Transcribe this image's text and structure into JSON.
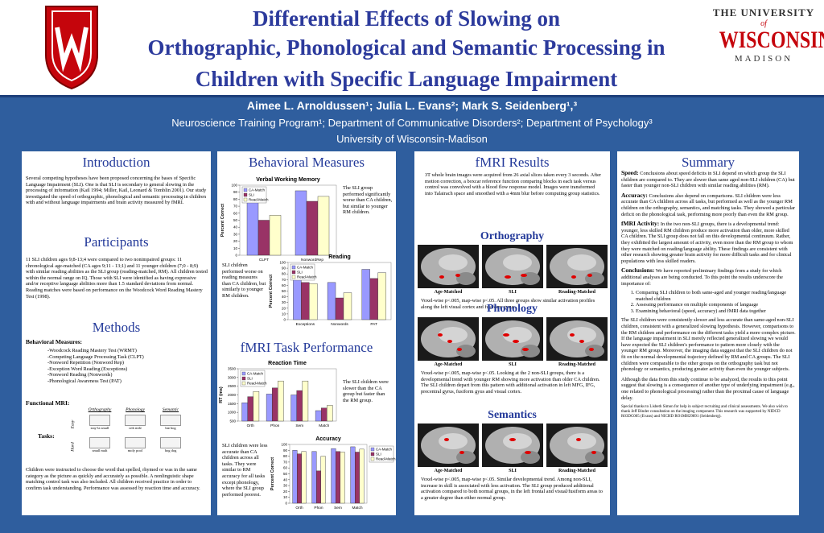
{
  "header": {
    "title_lines": [
      "Differential Effects of Slowing on",
      "Orthographic, Phonological and Semantic Processing in",
      "Children with Specific Language Impairment"
    ],
    "logo": {
      "line1": "THE UNIVERSITY",
      "line2": "of",
      "line3": "WISCONSIN",
      "line4": "MADISON"
    }
  },
  "authors": {
    "names": "Aimee L. Arnoldussen¹; Julia L. Evans²; Mark S. Seidenberg¹,³",
    "affiliations": "Neuroscience Training Program¹; Department of Communicative Disorders²; Department of Psychology³",
    "institution": "University of Wisconsin-Madison"
  },
  "introduction": {
    "heading": "Introduction",
    "text": "Several competing hypotheses have been proposed concerning the bases of Specific Language Impairment (SLI). One is that SLI is secondary to general slowing in the processing of information (Kail 1994; Miller, Kail, Leonard & Tomblin 2001). Our study investigated the speed of orthographic, phonological and semantic processing in children with and without language impairments and brain activity measured by fMRI."
  },
  "participants": {
    "heading": "Participants",
    "text": "11 SLI children ages 9;8-13;4 were compared to two nonimpaired groups: 11 chronological age-matched (CA ages 9;11 - 13;1) and 11 younger children (7;0 - 8;9) with similar reading abilities as the SLI group (reading-matched, RM). All children tested within the normal range on IQ. Those with SLI were identified as having expressive and/or receptive language abilities more than 1.5 standard deviations from normal. Reading matches were based on performance on the Woodcock Word Reading Mastery Test (1998)."
  },
  "methods": {
    "heading": "Methods",
    "behavioral_heading": "Behavioral Measures:",
    "behavioral_list": [
      "-Woodcock Reading Mastery Test (WRMT)",
      "-Competing Language Processing Task (CLPT)",
      "-Nonword Repetition (Nonword Rep)",
      "-Exception Word Reading (Exceptions)",
      "-Nonword Reading (Nonwords)",
      "-Phonological Awareness Test (PAT)"
    ],
    "fmri_heading": "Functional MRI:",
    "tasks_label": "Tasks:",
    "task_columns": [
      "Orthography",
      "Phonology",
      "Semantic"
    ],
    "task_rows": [
      "Easy",
      "Hard"
    ],
    "task_words": [
      [
        "stay-la small",
        "crib mile",
        "hat hog"
      ],
      [
        "small malt",
        "moly pool",
        "hog dog"
      ]
    ],
    "text": "Children were instructed to choose the word that spelled, rhymed or was in the same category as the picture as quickly and accurately as possible. A nonlinguistic shape matching control task was also included. All children received practice in order to confirm task understanding. Performance was assessed by reaction time and accuracy."
  },
  "behavioral": {
    "heading": "Behavioral Measures",
    "charts": [
      {
        "type": "bar",
        "title": "Verbal Working Memory",
        "ylabel": "Percent Correct",
        "categories": [
          "CLPT",
          "NonwordRep"
        ],
        "series": [
          {
            "name": "CA-Match",
            "color": "#9999ff",
            "values": [
              86,
              92
            ]
          },
          {
            "name": "SLI",
            "color": "#993366",
            "values": [
              50,
              77
            ]
          },
          {
            "name": "Read-Match",
            "color": "#ffffcc",
            "values": [
              57,
              84
            ]
          }
        ],
        "ylim": [
          0,
          100
        ],
        "yticks": [
          0,
          10,
          20,
          30,
          40,
          50,
          60,
          70,
          80,
          90,
          100
        ],
        "legend": "upper left",
        "note": "The SLI group performed significantly worse than CA children, but similar to younger RM children."
      },
      {
        "type": "bar",
        "title": "Reading",
        "ylabel": "Percent Correct",
        "categories": [
          "Exceptions",
          "Nonwords",
          "PAT"
        ],
        "series": [
          {
            "name": "CA-Match",
            "color": "#9999ff",
            "values": [
              80,
              65,
              88
            ]
          },
          {
            "name": "SLI",
            "color": "#993366",
            "values": [
              65,
              38,
              72
            ]
          },
          {
            "name": "Read-Match",
            "color": "#ffffcc",
            "values": [
              63,
              47,
              82
            ]
          }
        ],
        "ylim": [
          0,
          100
        ],
        "yticks": [
          0,
          10,
          20,
          30,
          40,
          50,
          60,
          70,
          80,
          90,
          100
        ],
        "legend": "upper left",
        "note": "SLI children performed worse on reading measures than CA children, but similarly to younger RM children."
      }
    ]
  },
  "task_performance": {
    "heading": "fMRI Task Performance",
    "charts": [
      {
        "type": "bar",
        "title": "Reaction Time",
        "ylabel": "RT (ms)",
        "categories": [
          "Orth",
          "Phon",
          "Sem",
          "Match"
        ],
        "series": [
          {
            "name": "CA-Match",
            "color": "#9999ff",
            "values": [
              1550,
              2050,
              2000,
              1100
            ]
          },
          {
            "name": "SLI",
            "color": "#993366",
            "values": [
              1900,
              2400,
              2250,
              1250
            ]
          },
          {
            "name": "Read-Match",
            "color": "#ffffcc",
            "values": [
              2200,
              2800,
              2800,
              1400
            ]
          }
        ],
        "ylim": [
          500,
          3500
        ],
        "yticks": [
          500,
          1000,
          1500,
          2000,
          2500,
          3000,
          3500
        ],
        "legend": "upper left",
        "note": "The SLI children were slower than the CA group but faster than the RM group."
      },
      {
        "type": "bar",
        "title": "Accuracy",
        "ylabel": "Percent Correct",
        "categories": [
          "Orth",
          "Phon",
          "Sem",
          "Match"
        ],
        "series": [
          {
            "name": "CA-Match",
            "color": "#9999ff",
            "values": [
              90,
              88,
              93,
              96
            ]
          },
          {
            "name": "SLI",
            "color": "#993366",
            "values": [
              84,
              55,
              88,
              87
            ]
          },
          {
            "name": "Read-Match",
            "color": "#ffffcc",
            "values": [
              88,
              80,
              87,
              92
            ]
          }
        ],
        "ylim": [
          0,
          100
        ],
        "yticks": [
          0,
          10,
          20,
          30,
          40,
          50,
          60,
          70,
          80,
          90,
          100
        ],
        "legend": "right",
        "note": "SLI children were less accurate than CA children across all tasks. They were similar to RM accuracy for all tasks except phonology, where the SLI group performed poorest."
      }
    ]
  },
  "fmri_results": {
    "heading": "fMRI Results",
    "text": "3T whole brain images were acquired from 26 axial slices taken every 3 seconds. After motion correction, a boxcar reference function comparing blocks in each task versus control was convolved with a blood flow response model. Images were transformed into Talairach space and smoothed with a 4mm blur before computing group statistics.",
    "group_labels": [
      "Age-Matched",
      "SLI",
      "Reading-Matched"
    ],
    "sections": [
      {
        "heading": "Orthography",
        "text": "Voxel-wise p<.005, map-wise p<.05. All three groups show similar activation profiles along the left visual cortex and fusiform gyrus."
      },
      {
        "heading": "Phonology",
        "text": "Voxel-wise p<.005, map-wise p<.05. Looking at the 2 non-SLI groups, there is a developmental trend with younger RM showing more activation than older CA children. The SLI children depart from this pattern with additional activation in left MFG, IFG, precentral gyrus, fusiform gyus and visual cortex."
      },
      {
        "heading": "Semantics",
        "text": "Voxel-wise p<.005, map-wise p<.05. Similar developmental trend. Among non-SLI, increase in skill is associated with less activation. The SLI group produced additional activation compared to both normal groups, in the left frontal and visual/fusiform areas to a greater degree than either normal group."
      }
    ]
  },
  "summary": {
    "heading": "Summary",
    "paragraphs": [
      {
        "lead": "Speed:",
        "text": "Conclusions about speed deficits in SLI depend on which group the SLI children are compared to. They are slower than same aged non-SLI children (CA) but faster than younger non-SLI children with similar reading abilities (RM)."
      },
      {
        "lead": "Accuracy:",
        "text": "Conclusions also depend on comparisons. SLI children were less accurate than CA children across all tasks, but performed as well as the younger RM children on the orthography, semantics, and matching tasks. They showed a particular deficit on the phonological task, performing more poorly than even the RM group."
      },
      {
        "lead": "fMRI Activity:",
        "text": "In the two non-SLI groups, there is a developmental trend: younger, less skilled RM children produce more activation than older, more skilled CA children. The SLI group does not fall on this developmental continuum. Rather, they exhibited the largest amount of activity, even more than the RM group to whom they were matched on reading/language ability. These findings are consistent with other research showing greater brain activity for more difficult tasks and for clinical populations with less skilled readers."
      },
      {
        "lead": "Conclusions:",
        "text": "We have reported preliminary findings from a study for which additional analyses are being conducted. To this point the results underscore the importance of:"
      }
    ],
    "list": [
      "Comparing SLI children to both same-aged and younger reading/language matched children",
      "Assessing performance on multiple components of language",
      "Examining behavioral (speed, accuracy) and fMRI data together"
    ],
    "discussion": [
      "The SLI children were consistently slower and less accurate than same-aged non-SLI children, consistent with a generalized slowing hypothesis. However, comparisons to the RM children and performance on the different tasks yield a more complex picture. If the language impairment in SLI merely reflected generalized slowing we would have expected the SLI children's performance to pattern more closely with the younger RM group. Moreover, the imaging data suggest that the SLI children do not fit on the normal developmental trajectory defined by RM and CA groups. The SLI children were comparable to the other groups on the orthography task but not phonology or semantics, producing greater activity than even the younger subjects.",
      "Although the data from this study continue to be analyzed, the results to this point suggest that slowing is a consequence of another type of underlying impairment (e.g., one related to phonological processing) rather than the proximal cause of language delay."
    ],
    "acknowledgments": "Special thanks to Lisbeth Simon for help in subject recruiting and clinical assessments. We also wish to thank Jeff Binder consultation on the imaging component. This research was supported by NIDCD R03DC005 (Evans) and NICHD RO1MH29891 (Seidenberg)."
  }
}
